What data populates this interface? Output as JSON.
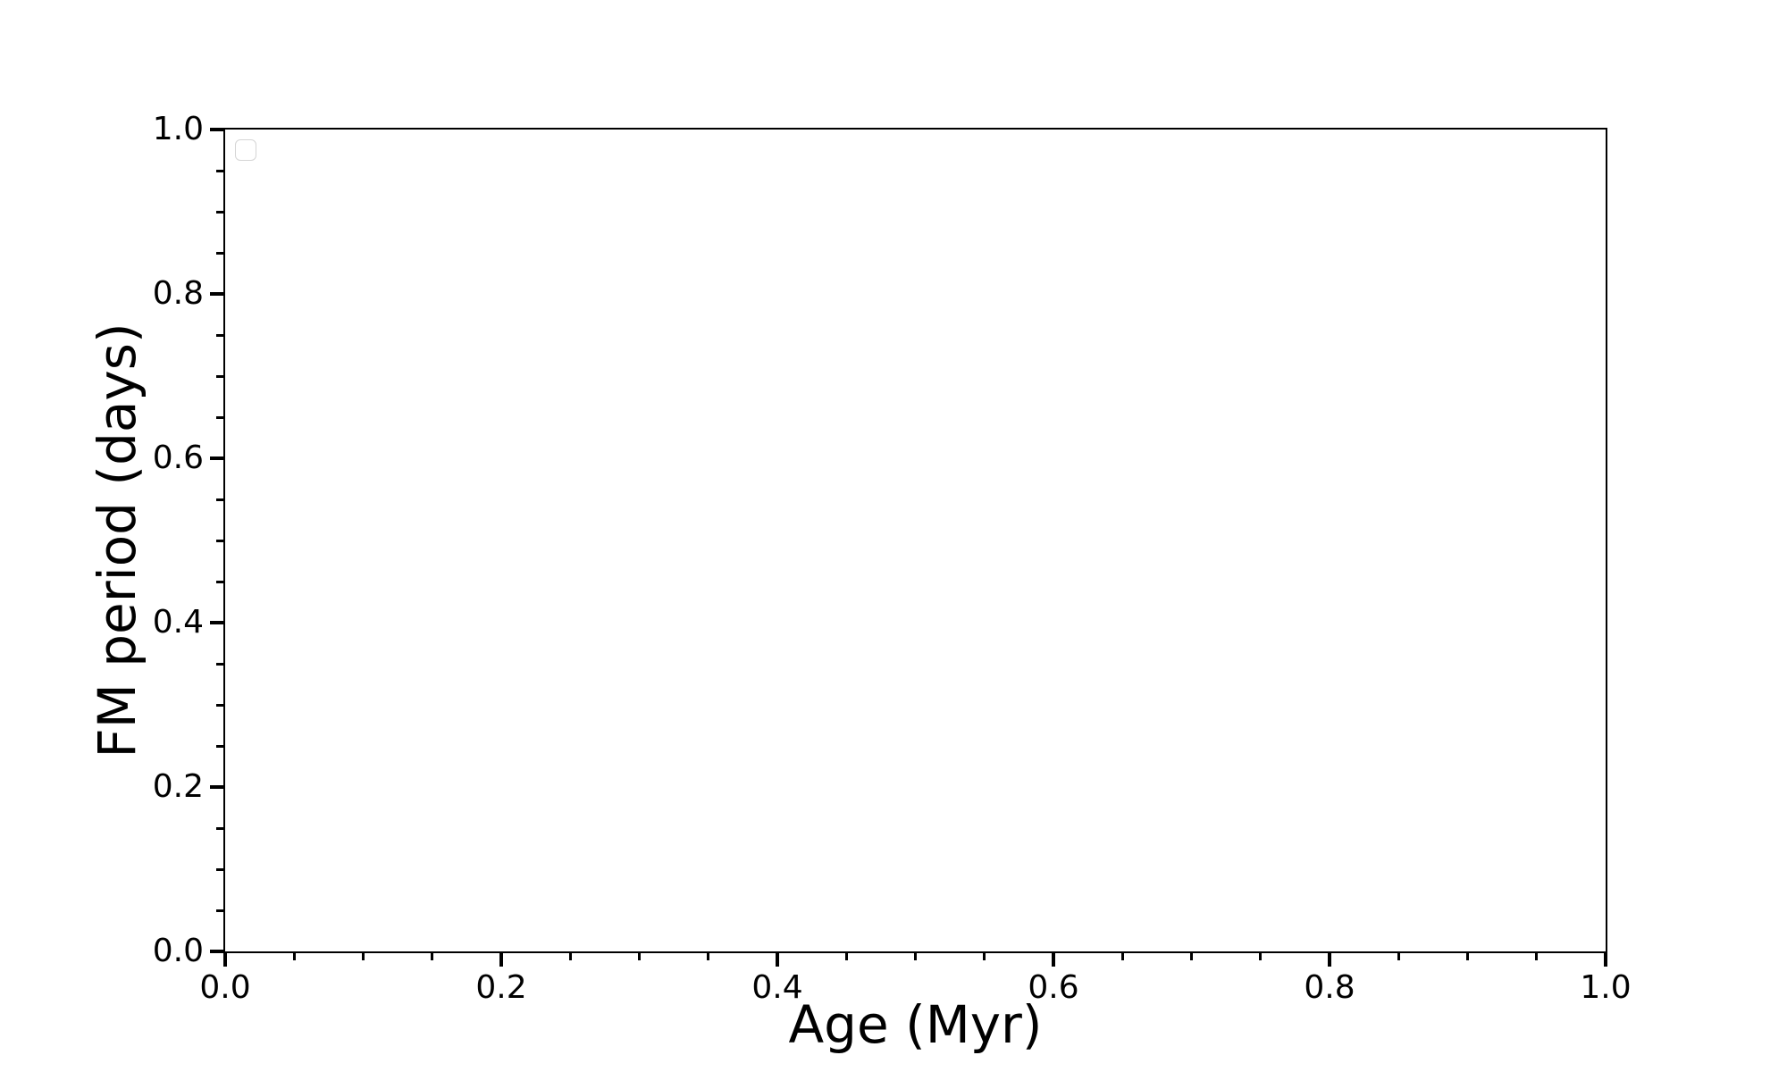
{
  "chart_data": {
    "type": "scatter",
    "title": "",
    "xlabel": "Age (Myr)",
    "ylabel": "FM period (days)",
    "xlim": [
      0.0,
      1.0
    ],
    "ylim": [
      0.0,
      1.0
    ],
    "x_ticks": {
      "values": [
        0.0,
        0.2,
        0.4,
        0.6,
        0.8,
        1.0
      ],
      "labels": [
        "0.0",
        "0.2",
        "0.4",
        "0.6",
        "0.8",
        "1.0"
      ]
    },
    "y_ticks": {
      "values": [
        0.0,
        0.2,
        0.4,
        0.6,
        0.8,
        1.0
      ],
      "labels": [
        "0.0",
        "0.2",
        "0.4",
        "0.6",
        "0.8",
        "1.0"
      ]
    },
    "minor_tick_step": 0.05,
    "tick_direction": "out",
    "grid": false,
    "series": [],
    "legend": {
      "visible": true,
      "entries": [],
      "location": "upper left"
    },
    "colors": {
      "spine": "#000000",
      "tick": "#000000",
      "text": "#000000",
      "legend_border": "#d5d5d5",
      "background": "#ffffff"
    }
  }
}
